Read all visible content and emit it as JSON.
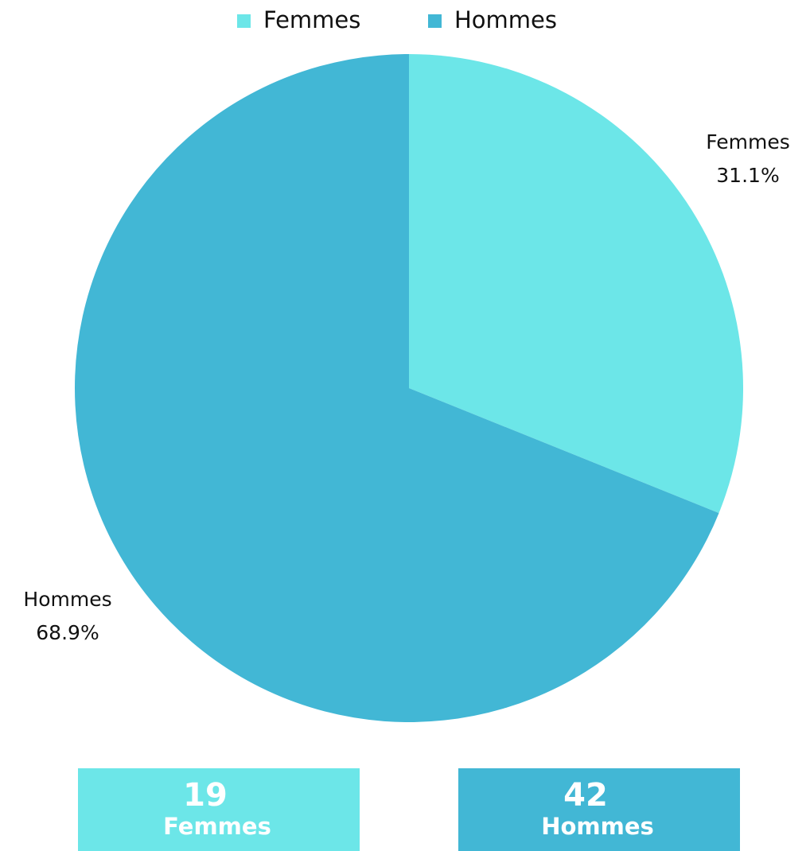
{
  "chart_data": {
    "type": "pie",
    "categories": [
      "Femmes",
      "Hommes"
    ],
    "values": [
      31.1,
      68.9
    ],
    "value_labels": [
      "31.1%",
      "68.9%"
    ],
    "colors": [
      "#6ce6e8",
      "#42b7d5"
    ],
    "legend": "top"
  },
  "stats": [
    {
      "value": 19,
      "label": "Femmes"
    },
    {
      "value": 42,
      "label": "Hommes"
    }
  ]
}
